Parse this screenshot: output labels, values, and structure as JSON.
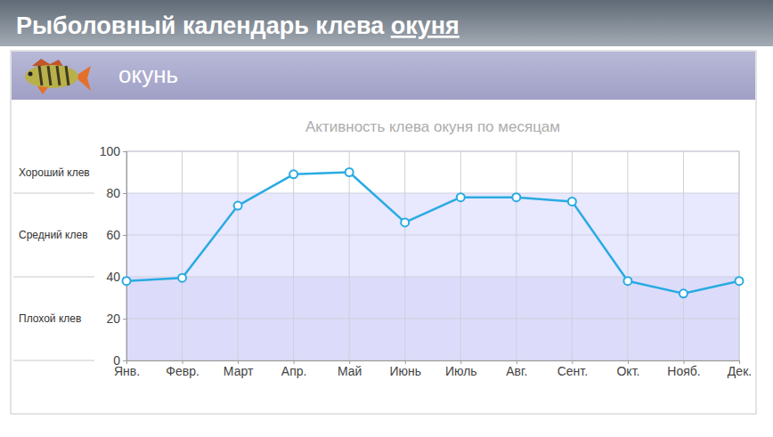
{
  "header": {
    "title": "Рыболовный календарь клева",
    "title_link": "окуня"
  },
  "panel": {
    "title": "окунь"
  },
  "chart_data": {
    "type": "line",
    "title": "Активность клева окуня по месяцам",
    "categories": [
      "Янв.",
      "Февр.",
      "Март",
      "Апр.",
      "Май",
      "Июнь",
      "Июль",
      "Авг.",
      "Сент.",
      "Окт.",
      "Нояб.",
      "Дек."
    ],
    "values": [
      38,
      39.5,
      74,
      89,
      90,
      66,
      78,
      78,
      76,
      38,
      32,
      38
    ],
    "color": "#29abe2",
    "marker": "circle",
    "ylim": [
      0,
      100
    ],
    "yticks": [
      0,
      20,
      40,
      60,
      80,
      100
    ],
    "grid": true,
    "bands": [
      {
        "label": "Хороший клев",
        "range": [
          80,
          100
        ]
      },
      {
        "label": "Средний клев",
        "range": [
          40,
          80
        ]
      },
      {
        "label": "Плохой клев",
        "range": [
          0,
          40
        ]
      }
    ]
  }
}
